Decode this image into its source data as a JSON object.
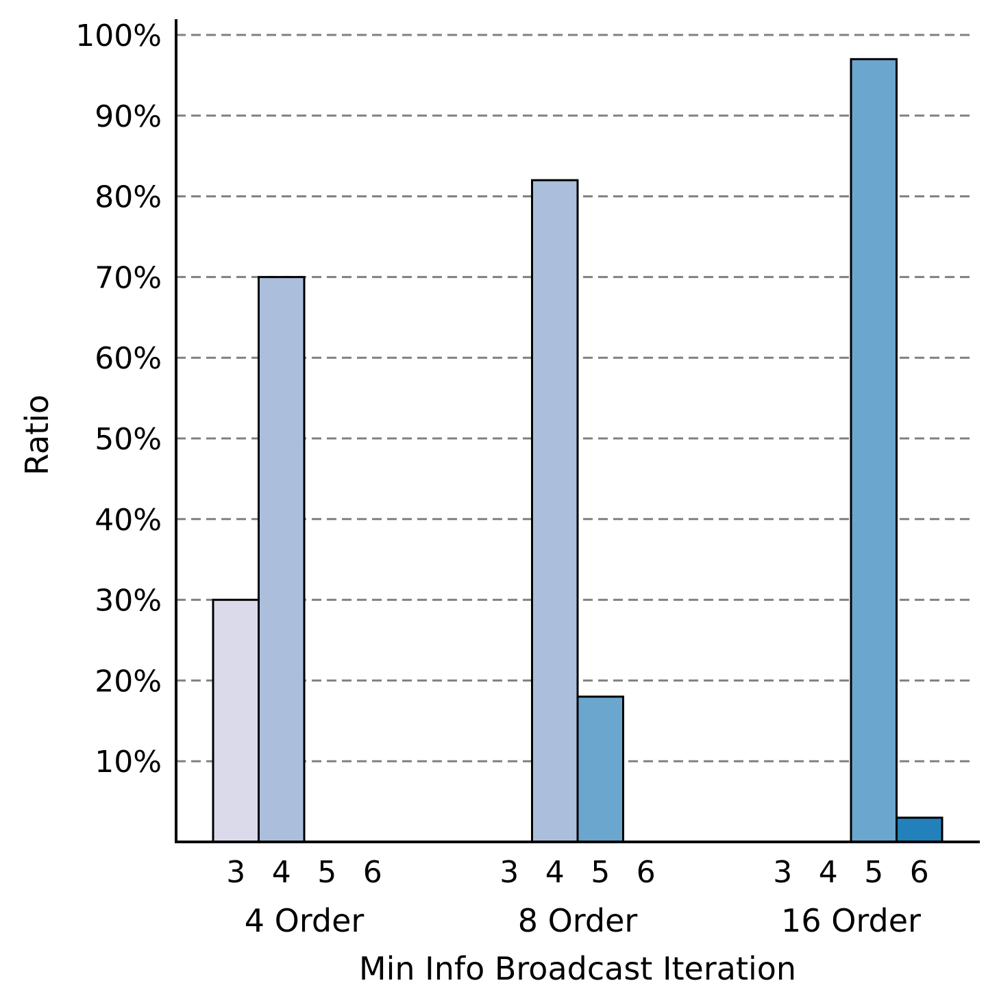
{
  "chart_data": {
    "type": "bar",
    "title": "",
    "xlabel": "Min Info Broadcast Iteration",
    "ylabel": "Ratio",
    "ylim": [
      0,
      100
    ],
    "ytick_values": [
      10,
      20,
      30,
      40,
      50,
      60,
      70,
      80,
      90,
      100
    ],
    "ytick_labels": [
      "10%",
      "20%",
      "30%",
      "40%",
      "50%",
      "60%",
      "70%",
      "80%",
      "90%",
      "100%"
    ],
    "grid": "horizontal dashed",
    "groups": [
      "4 Order",
      "8 Order",
      "16 Order"
    ],
    "categories": [
      "3",
      "4",
      "5",
      "6"
    ],
    "series_colors": [
      "#dadaeb",
      "#abbfdc",
      "#6ba6cf",
      "#2281bb"
    ],
    "values": [
      [
        30,
        70,
        0,
        0
      ],
      [
        0,
        82,
        18,
        0
      ],
      [
        0,
        0,
        97,
        3
      ]
    ]
  }
}
